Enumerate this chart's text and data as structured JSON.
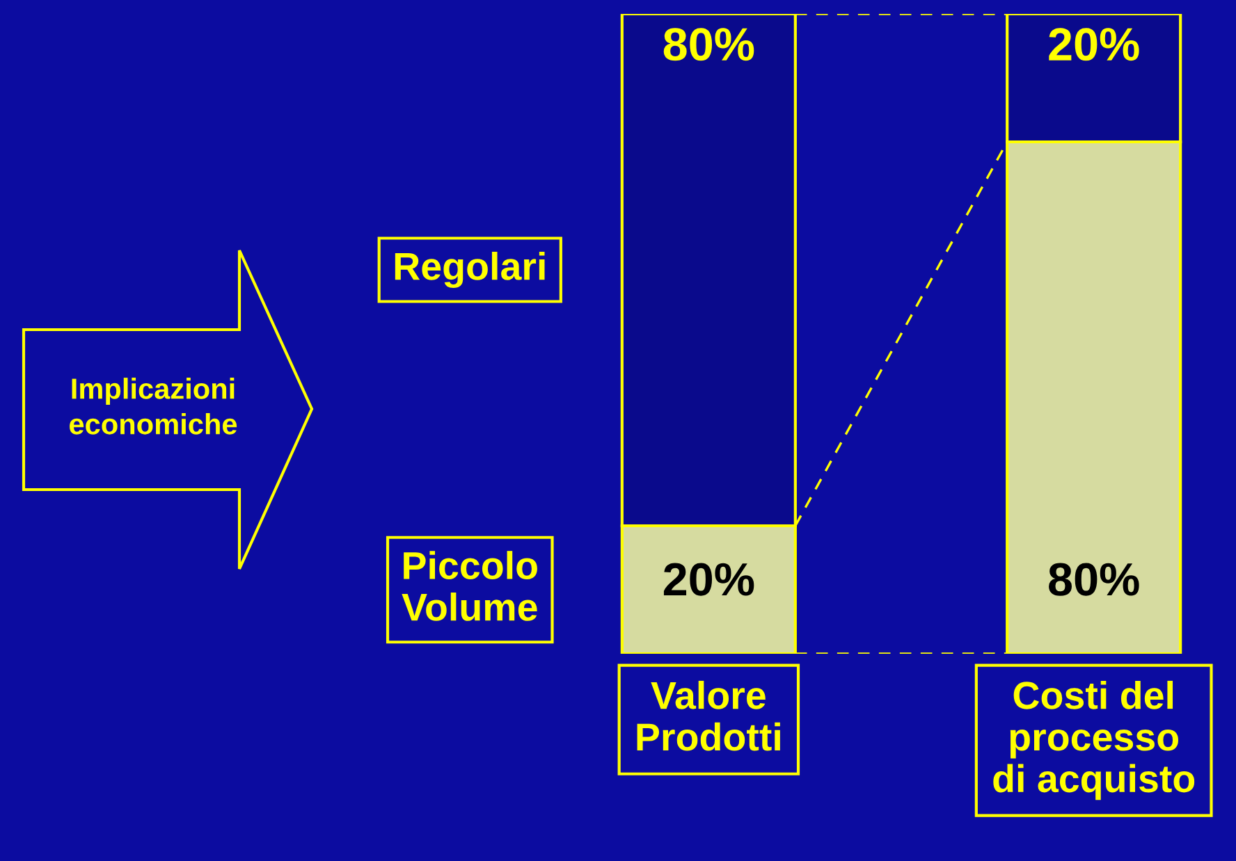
{
  "chart_data": {
    "type": "bar",
    "stacked": true,
    "categories": [
      "Valore\nProdotti",
      "Costi del\nprocesso\ndi acquisto"
    ],
    "series": [
      {
        "name": "Piccolo\nVolume",
        "color": "#d6dba0",
        "values": [
          20,
          80
        ],
        "value_labels": [
          "20%",
          "80%"
        ]
      },
      {
        "name": "Regolari",
        "color": "#0a0a8c",
        "values": [
          80,
          20
        ],
        "value_labels": [
          "80%",
          "20%"
        ]
      }
    ],
    "annotations": [
      "Implicazioni\neconomiche"
    ]
  }
}
